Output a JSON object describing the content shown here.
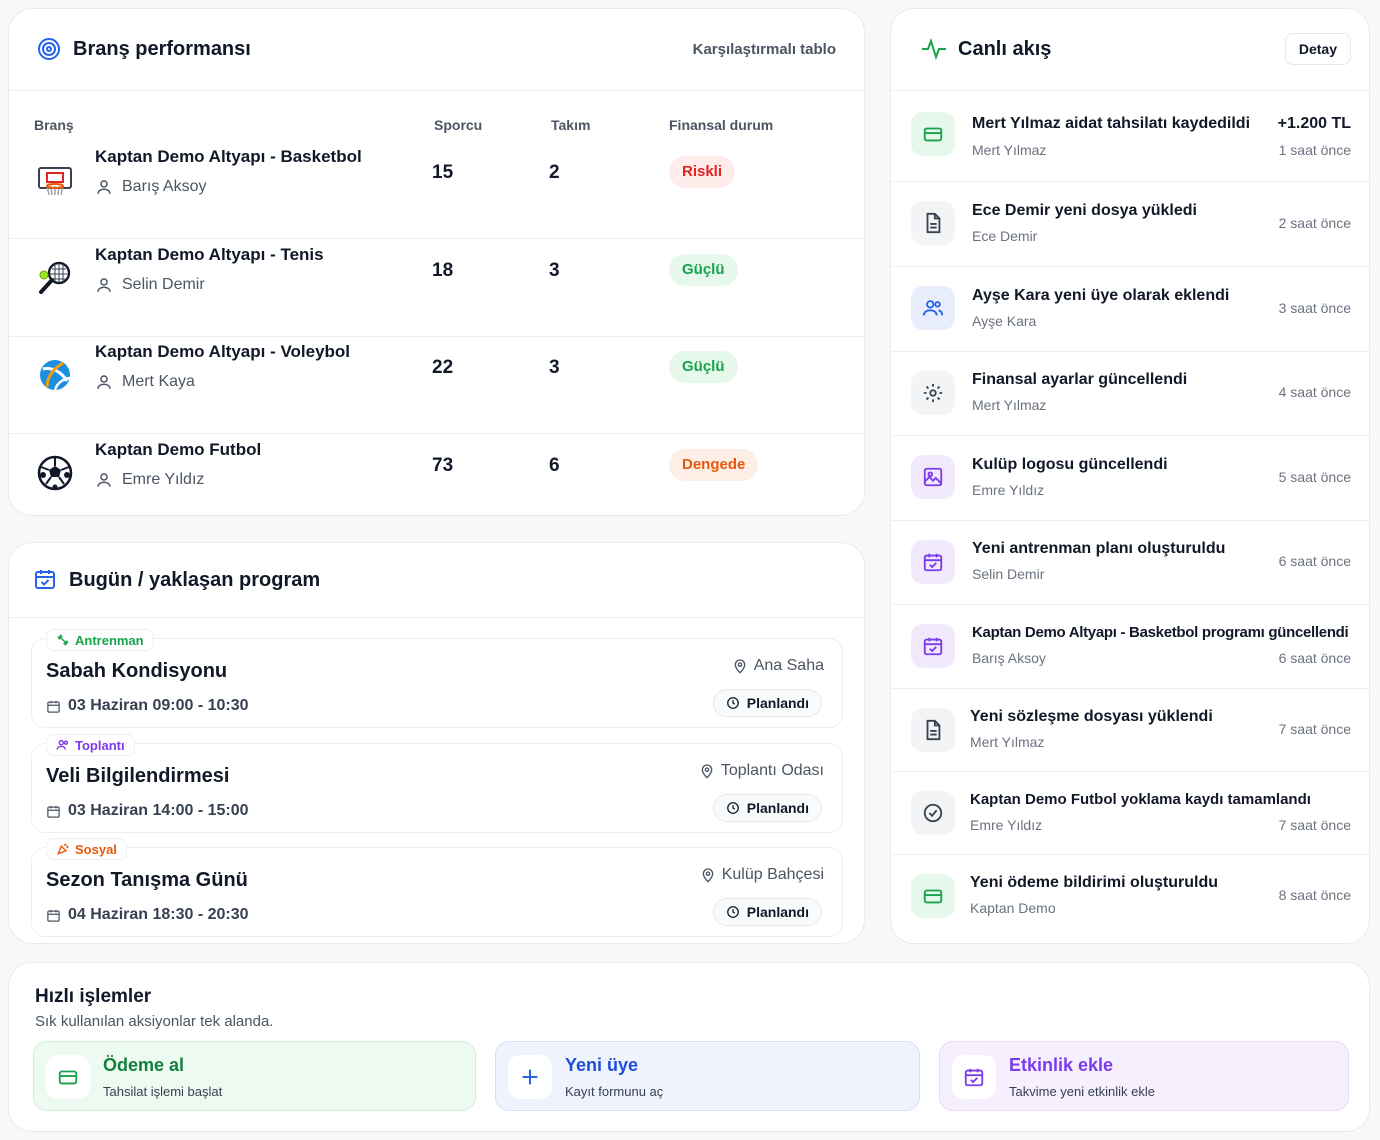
{
  "branch": {
    "title": "Branş performansı",
    "compare_link": "Karşılaştırmalı tablo",
    "columns": {
      "branch": "Branş",
      "athletes": "Sporcu",
      "teams": "Takım",
      "finance": "Finansal durum"
    },
    "rows": [
      {
        "name": "Kaptan Demo Altyapı - Basketbol",
        "coach": "Barış Aksoy",
        "athletes": "15",
        "teams": "2",
        "status": "Riskli",
        "icon": "basketball-hoop-icon"
      },
      {
        "name": "Kaptan Demo Altyapı - Tenis",
        "coach": "Selin Demir",
        "athletes": "18",
        "teams": "3",
        "status": "Güçlü",
        "icon": "tennis-racket-icon"
      },
      {
        "name": "Kaptan Demo Altyapı - Voleybol",
        "coach": "Mert Kaya",
        "athletes": "22",
        "teams": "3",
        "status": "Güçlü",
        "icon": "volleyball-icon"
      },
      {
        "name": "Kaptan Demo Futbol",
        "coach": "Emre Yıldız",
        "athletes": "73",
        "teams": "6",
        "status": "Dengede",
        "icon": "soccer-ball-icon"
      }
    ]
  },
  "program": {
    "title": "Bugün / yaklaşan program",
    "events": [
      {
        "tag": "Antrenman",
        "title": "Sabah Kondisyonu",
        "time": "03 Haziran 09:00 - 10:30",
        "location": "Ana Saha",
        "status": "Planlandı",
        "tag_color": "#16a34a"
      },
      {
        "tag": "Toplantı",
        "title": "Veli Bilgilendirmesi",
        "time": "03 Haziran 14:00 - 15:00",
        "location": "Toplantı Odası",
        "status": "Planlandı",
        "tag_color": "#7c3aed"
      },
      {
        "tag": "Sosyal",
        "title": "Sezon Tanışma Günü",
        "time": "04 Haziran 18:30 - 20:30",
        "location": "Kulüp Bahçesi",
        "status": "Planlandı",
        "tag_color": "#ea580c"
      }
    ]
  },
  "feed": {
    "title": "Canlı akış",
    "detail_label": "Detay",
    "items": [
      {
        "title": "Mert Yılmaz aidat tahsilatı kaydedildi",
        "user": "Mert Yılmaz",
        "time": "1 saat önce",
        "amount": "+1.200 TL",
        "icon": "card-icon"
      },
      {
        "title": "Ece Demir yeni dosya yükledi",
        "user": "Ece Demir",
        "time": "2 saat önce",
        "icon": "document-icon"
      },
      {
        "title": "Ayşe Kara yeni üye olarak eklendi",
        "user": "Ayşe Kara",
        "time": "3 saat önce",
        "icon": "users-icon"
      },
      {
        "title": "Finansal ayarlar güncellendi",
        "user": "Mert Yılmaz",
        "time": "4 saat önce",
        "icon": "gear-icon"
      },
      {
        "title": "Kulüp logosu güncellendi",
        "user": "Emre Yıldız",
        "time": "5 saat önce",
        "icon": "image-icon"
      },
      {
        "title": "Yeni antrenman planı oluşturuldu",
        "user": "Selin Demir",
        "time": "6 saat önce",
        "icon": "calendar-check-icon"
      },
      {
        "title": "Kaptan Demo Altyapı - Basketbol programı güncellendi",
        "user": "Barış Aksoy",
        "time": "6 saat önce",
        "icon": "calendar-check-icon"
      },
      {
        "title": "Yeni sözleşme dosyası yüklendi",
        "user": "Mert Yılmaz",
        "time": "7 saat önce",
        "icon": "document-icon"
      },
      {
        "title": "Kaptan Demo Futbol yoklama kaydı tamamlandı",
        "user": "Emre Yıldız",
        "time": "7 saat önce",
        "icon": "check-circle-icon"
      },
      {
        "title": "Yeni ödeme bildirimi oluşturuldu",
        "user": "Kaptan Demo",
        "time": "8 saat önce",
        "icon": "card-icon"
      }
    ]
  },
  "quick": {
    "title": "Hızlı işlemler",
    "subtitle": "Sık kullanılan aksiyonlar tek alanda.",
    "actions": [
      {
        "label": "Ödeme al",
        "desc": "Tahsilat işlemi başlat",
        "icon": "card-icon"
      },
      {
        "label": "Yeni üye",
        "desc": "Kayıt formunu aç",
        "icon": "plus-icon"
      },
      {
        "label": "Etkinlik ekle",
        "desc": "Takvime yeni etkinlik ekle",
        "icon": "calendar-check-icon"
      }
    ]
  },
  "colors": {
    "accent_blue": "#2563eb",
    "green": "#16a34a",
    "purple": "#7c3aed",
    "red": "#e02424",
    "orange": "#ea580c"
  }
}
